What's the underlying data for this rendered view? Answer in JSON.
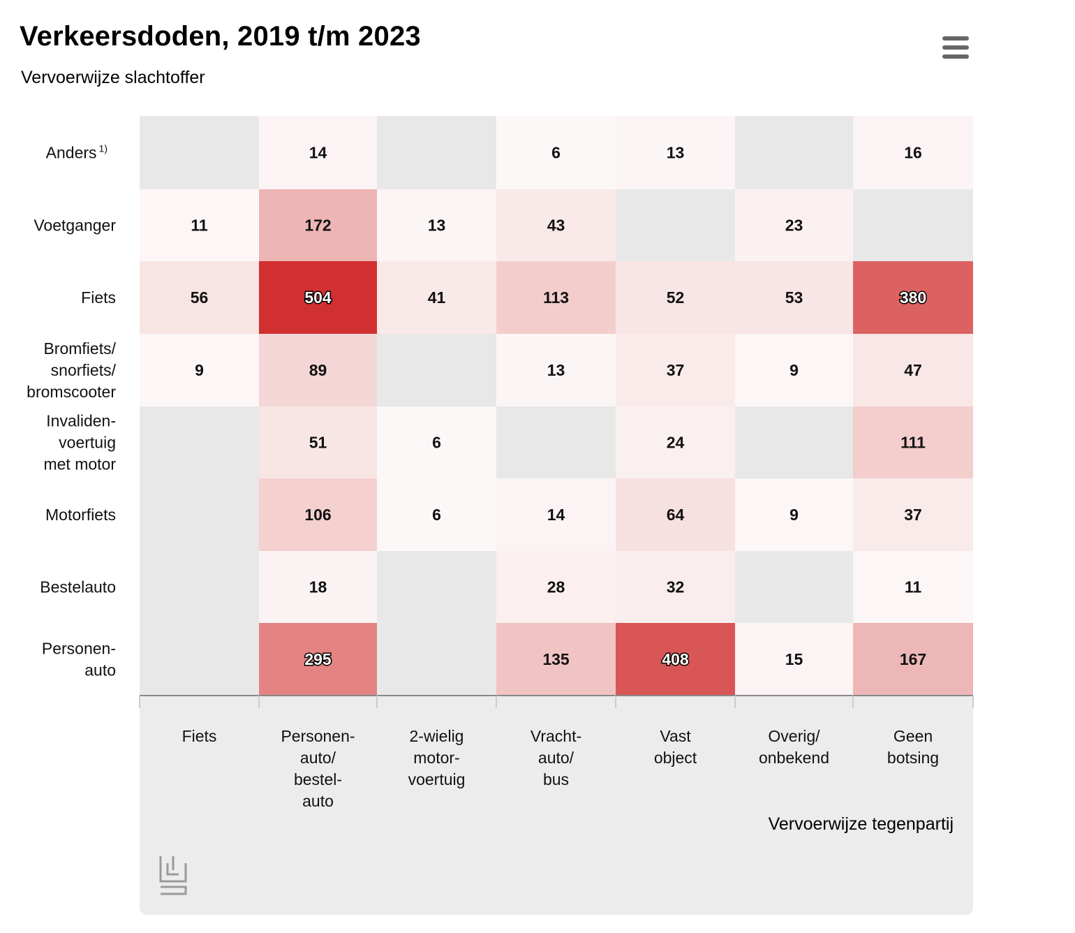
{
  "header": {
    "title": "Verkeersdoden, 2019 t/m 2023",
    "subtitle": "Vervoerwijze slachtoffer"
  },
  "footer": {
    "x_axis_name": "Vervoerwijze tegenpartij"
  },
  "icons": {
    "menu": "hamburger-menu-icon",
    "logo": "cbs-logo-icon"
  },
  "colors": {
    "empty_cell": "#e8e8e8",
    "low": "#fdfafa",
    "high": "#d0302f",
    "axis_line": "#888888",
    "panel": "#ececec"
  },
  "chart_data": {
    "type": "heatmap",
    "title": "Verkeersdoden, 2019 t/m 2023",
    "subtitle": "Vervoerwijze slachtoffer",
    "xlabel": "Vervoerwijze tegenpartij",
    "ylabel": "Vervoerwijze slachtoffer",
    "x_categories": [
      "Fiets",
      "Personen-\nauto/\nbestel-\nauto",
      "2-wielig\nmotor-\nvoertuig",
      "Vracht-\nauto/\nbus",
      "Vast\nobject",
      "Overig/\nonbekend",
      "Geen\nbotsing"
    ],
    "y_categories": [
      "Anders",
      "Voetganger",
      "Fiets",
      "Bromfiets/\nsnorfiets/\nbromscooter",
      "Invaliden-\nvoertuig\nmet motor",
      "Motorfiets",
      "Bestelauto",
      "Personen-\nauto"
    ],
    "y_footnote": "1)",
    "values": [
      [
        null,
        14,
        null,
        6,
        13,
        null,
        16
      ],
      [
        11,
        172,
        13,
        43,
        null,
        23,
        null
      ],
      [
        56,
        504,
        41,
        113,
        52,
        53,
        380
      ],
      [
        9,
        89,
        null,
        13,
        37,
        9,
        47
      ],
      [
        null,
        51,
        6,
        null,
        24,
        null,
        111
      ],
      [
        null,
        106,
        6,
        14,
        64,
        9,
        37
      ],
      [
        null,
        18,
        null,
        28,
        32,
        null,
        11
      ],
      [
        null,
        295,
        null,
        135,
        408,
        15,
        167
      ]
    ],
    "color_range": [
      0,
      504
    ],
    "legend": "none",
    "grid": false
  }
}
